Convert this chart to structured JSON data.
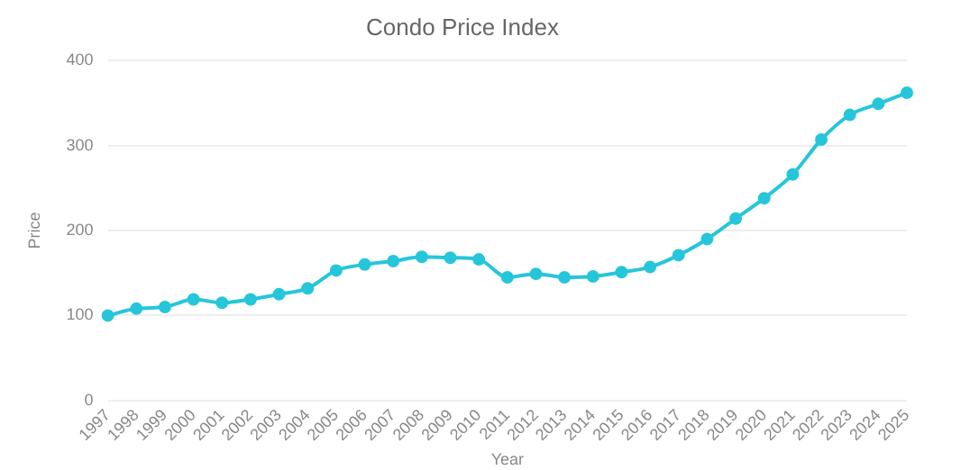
{
  "chart_data": {
    "type": "line",
    "title": "Condo Price Index",
    "xlabel": "Year",
    "ylabel": "Price",
    "categories": [
      "1997",
      "1998",
      "1999",
      "2000",
      "2001",
      "2002",
      "2003",
      "2004",
      "2005",
      "2006",
      "2007",
      "2008",
      "2009",
      "2010",
      "2011",
      "2012",
      "2013",
      "2014",
      "2015",
      "2016",
      "2017",
      "2018",
      "2019",
      "2020",
      "2021",
      "2022",
      "2023",
      "2024",
      "2025"
    ],
    "series": [
      {
        "color": "#26c6da",
        "values": [
          100,
          108,
          110,
          119,
          115,
          119,
          125,
          132,
          153,
          160,
          164,
          169,
          168,
          166,
          145,
          149,
          145,
          146,
          151,
          157,
          171,
          190,
          214,
          238,
          266,
          307,
          336,
          349,
          362
        ]
      }
    ],
    "ylim": [
      0,
      400
    ],
    "yticks": [
      0,
      100,
      200,
      300,
      400
    ],
    "grid": "y",
    "legend": false,
    "marker": "circle",
    "line_style": "solid"
  }
}
